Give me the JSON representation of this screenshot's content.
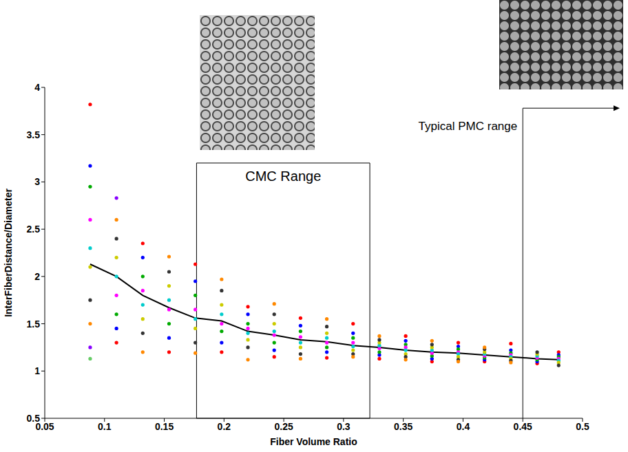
{
  "chart_data": {
    "type": "scatter",
    "x_label": "Fiber Volume Ratio",
    "y_label": "InterFiberDistance/Diameter",
    "x": [
      0.088,
      0.11,
      0.132,
      0.154,
      0.176,
      0.198,
      0.22,
      0.242,
      0.264,
      0.286,
      0.308,
      0.33,
      0.352,
      0.374,
      0.396,
      0.418,
      0.44,
      0.462,
      0.48
    ],
    "series": [
      {
        "type": "scatter",
        "color": "#ff0000",
        "marker": "circle",
        "values": [
          3.82,
          1.3,
          2.35,
          1.2,
          2.13,
          1.2,
          1.68,
          1.15,
          1.56,
          1.14,
          1.5,
          1.13,
          1.37,
          1.1,
          1.3,
          1.1,
          1.29,
          1.08,
          1.2
        ]
      },
      {
        "type": "scatter",
        "color": "#0000ff",
        "marker": "circle",
        "values": [
          3.17,
          1.45,
          2.2,
          1.35,
          1.95,
          1.3,
          1.6,
          1.22,
          1.48,
          1.2,
          1.4,
          1.17,
          1.32,
          1.13,
          1.26,
          1.12,
          1.22,
          1.1,
          1.17
        ]
      },
      {
        "type": "scatter",
        "color": "#00aa00",
        "marker": "circle",
        "values": [
          2.95,
          1.6,
          2.0,
          1.5,
          1.8,
          1.42,
          1.5,
          1.3,
          1.42,
          1.25,
          1.35,
          1.2,
          1.28,
          1.16,
          1.23,
          1.14,
          1.19,
          1.12,
          1.15
        ]
      },
      {
        "type": "scatter",
        "color": "#ff00ff",
        "marker": "circle",
        "values": [
          2.6,
          1.8,
          1.85,
          1.65,
          1.65,
          1.5,
          1.45,
          1.38,
          1.36,
          1.3,
          1.3,
          1.24,
          1.25,
          1.19,
          1.2,
          1.16,
          1.17,
          1.14,
          1.13
        ]
      },
      {
        "type": "scatter",
        "color": "#00cccc",
        "marker": "circle",
        "values": [
          2.3,
          2.0,
          1.7,
          1.75,
          1.55,
          1.6,
          1.4,
          1.42,
          1.3,
          1.35,
          1.26,
          1.27,
          1.22,
          1.22,
          1.18,
          1.18,
          1.15,
          1.16,
          1.11
        ]
      },
      {
        "type": "scatter",
        "color": "#cccc00",
        "marker": "circle",
        "values": [
          2.1,
          2.2,
          1.55,
          1.9,
          1.45,
          1.7,
          1.33,
          1.5,
          1.25,
          1.4,
          1.22,
          1.3,
          1.18,
          1.25,
          1.15,
          1.2,
          1.13,
          1.18,
          1.09
        ]
      },
      {
        "type": "scatter",
        "color": "#333333",
        "marker": "circle",
        "values": [
          1.75,
          2.4,
          1.4,
          2.05,
          1.3,
          1.85,
          1.25,
          1.6,
          1.18,
          1.47,
          1.18,
          1.33,
          1.15,
          1.28,
          1.12,
          1.23,
          1.11,
          1.2,
          1.06
        ]
      },
      {
        "type": "scatter",
        "color": "#ff8800",
        "marker": "circle",
        "values": [
          1.5,
          2.6,
          1.2,
          2.21,
          1.19,
          1.97,
          1.12,
          1.71,
          1.13,
          1.55,
          1.15,
          1.37,
          1.12,
          1.32,
          1.1,
          1.25,
          1.09,
          null,
          null
        ]
      },
      {
        "type": "scatter",
        "color": "#8800ff",
        "marker": "circle",
        "values": [
          1.25,
          2.83,
          null,
          null,
          null,
          null,
          null,
          null,
          null,
          null,
          null,
          null,
          null,
          null,
          null,
          null,
          null,
          null,
          null
        ]
      },
      {
        "type": "scatter",
        "color": "#66cc66",
        "marker": "circle",
        "values": [
          1.13,
          null,
          null,
          null,
          null,
          null,
          null,
          null,
          null,
          null,
          null,
          null,
          null,
          null,
          null,
          null,
          null,
          null,
          null
        ]
      },
      {
        "type": "line",
        "color": "#000000",
        "line_style": "solid",
        "values": [
          2.13,
          2.0,
          1.8,
          1.67,
          1.56,
          1.53,
          1.42,
          1.38,
          1.33,
          1.31,
          1.27,
          1.25,
          1.22,
          1.2,
          1.19,
          1.17,
          1.15,
          1.13,
          1.12
        ]
      }
    ],
    "xlim": [
      0.05,
      0.5
    ],
    "xticks": [
      0.05,
      0.1,
      0.15,
      0.2,
      0.25,
      0.3,
      0.35,
      0.4,
      0.45,
      0.5
    ],
    "ylim": [
      0.5,
      4
    ],
    "yticks": [
      0.5,
      1,
      1.5,
      2,
      2.5,
      3,
      3.5,
      4
    ],
    "grid": false,
    "annotations": [
      {
        "type": "box",
        "text": "CMC Range",
        "x1": 0.177,
        "x2": 0.322,
        "y1": 0.5,
        "y2": 3.2
      },
      {
        "type": "arrow",
        "text": "Typical PMC range",
        "x": 0.45,
        "y": 3.78
      }
    ]
  }
}
